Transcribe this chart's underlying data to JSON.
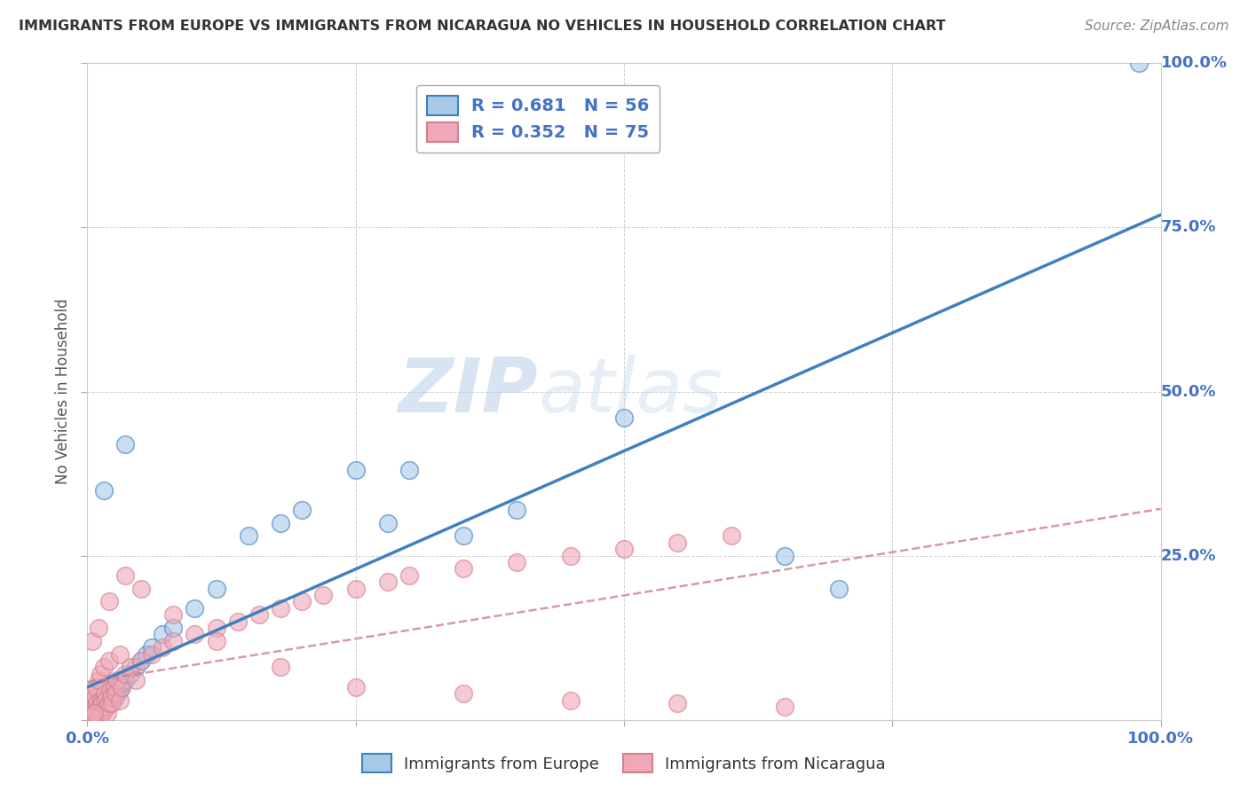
{
  "title": "IMMIGRANTS FROM EUROPE VS IMMIGRANTS FROM NICARAGUA NO VEHICLES IN HOUSEHOLD CORRELATION CHART",
  "source": "Source: ZipAtlas.com",
  "ylabel": "No Vehicles in Household",
  "legend_label1": "Immigrants from Europe",
  "legend_label2": "Immigrants from Nicaragua",
  "r1": 0.681,
  "n1": 56,
  "r2": 0.352,
  "n2": 75,
  "color_europe": "#a8c8e8",
  "color_nicaragua": "#f0a8b8",
  "color_europe_line": "#4080c0",
  "color_nicaragua_line": "#d08090",
  "watermark_zip": "ZIP",
  "watermark_atlas": "atlas",
  "xlim": [
    0,
    100
  ],
  "ylim": [
    0,
    100
  ],
  "ytick_values": [
    0,
    25,
    50,
    75,
    100
  ],
  "xtick_values": [
    0,
    25,
    50,
    75,
    100
  ],
  "grid_color": "#cccccc",
  "background_color": "#ffffff",
  "europe_x": [
    0.2,
    0.3,
    0.4,
    0.5,
    0.5,
    0.6,
    0.7,
    0.8,
    0.8,
    0.9,
    1.0,
    1.0,
    1.1,
    1.2,
    1.3,
    1.4,
    1.5,
    1.5,
    1.6,
    1.7,
    1.8,
    1.8,
    1.9,
    2.0,
    2.1,
    2.2,
    2.3,
    2.5,
    2.6,
    2.8,
    3.0,
    3.2,
    3.5,
    4.0,
    4.5,
    5.0,
    5.5,
    6.0,
    7.0,
    8.0,
    10.0,
    12.0,
    15.0,
    18.0,
    20.0,
    25.0,
    28.0,
    30.0,
    35.0,
    40.0,
    50.0,
    65.0,
    70.0,
    98.0,
    1.5,
    3.5
  ],
  "europe_y": [
    1.0,
    0.5,
    1.5,
    1.0,
    2.0,
    0.8,
    1.5,
    1.2,
    2.5,
    1.8,
    1.0,
    3.0,
    2.0,
    1.5,
    2.5,
    1.0,
    2.0,
    3.5,
    2.5,
    2.0,
    3.0,
    4.0,
    3.5,
    2.5,
    3.0,
    3.5,
    2.8,
    4.0,
    3.5,
    5.0,
    4.5,
    5.5,
    6.0,
    7.0,
    8.0,
    9.0,
    10.0,
    11.0,
    13.0,
    14.0,
    17.0,
    20.0,
    28.0,
    30.0,
    32.0,
    38.0,
    30.0,
    38.0,
    28.0,
    32.0,
    46.0,
    25.0,
    20.0,
    100.0,
    35.0,
    42.0
  ],
  "nicaragua_x": [
    0.1,
    0.2,
    0.3,
    0.3,
    0.4,
    0.5,
    0.5,
    0.6,
    0.7,
    0.7,
    0.8,
    0.8,
    0.9,
    1.0,
    1.0,
    1.1,
    1.2,
    1.2,
    1.3,
    1.4,
    1.5,
    1.5,
    1.6,
    1.7,
    1.8,
    1.9,
    2.0,
    2.0,
    2.1,
    2.2,
    2.3,
    2.5,
    2.6,
    2.8,
    3.0,
    3.0,
    3.2,
    3.5,
    4.0,
    4.5,
    5.0,
    6.0,
    7.0,
    8.0,
    10.0,
    12.0,
    14.0,
    16.0,
    18.0,
    20.0,
    22.0,
    25.0,
    28.0,
    30.0,
    35.0,
    40.0,
    45.0,
    50.0,
    55.0,
    60.0,
    0.5,
    1.0,
    2.0,
    3.5,
    5.0,
    8.0,
    12.0,
    18.0,
    25.0,
    35.0,
    45.0,
    55.0,
    65.0,
    0.4,
    0.6
  ],
  "nicaragua_y": [
    1.5,
    0.5,
    1.0,
    3.0,
    2.0,
    0.5,
    4.0,
    1.5,
    0.8,
    3.5,
    1.0,
    5.0,
    2.5,
    1.5,
    6.0,
    2.0,
    1.0,
    7.0,
    3.0,
    2.5,
    1.5,
    8.0,
    4.0,
    3.0,
    2.0,
    1.0,
    2.5,
    9.0,
    4.5,
    3.5,
    2.5,
    5.0,
    4.0,
    6.0,
    3.0,
    10.0,
    5.0,
    7.0,
    8.0,
    6.0,
    9.0,
    10.0,
    11.0,
    12.0,
    13.0,
    14.0,
    15.0,
    16.0,
    17.0,
    18.0,
    19.0,
    20.0,
    21.0,
    22.0,
    23.0,
    24.0,
    25.0,
    26.0,
    27.0,
    28.0,
    12.0,
    14.0,
    18.0,
    22.0,
    20.0,
    16.0,
    12.0,
    8.0,
    5.0,
    4.0,
    3.0,
    2.5,
    2.0,
    0.5,
    1.0
  ]
}
